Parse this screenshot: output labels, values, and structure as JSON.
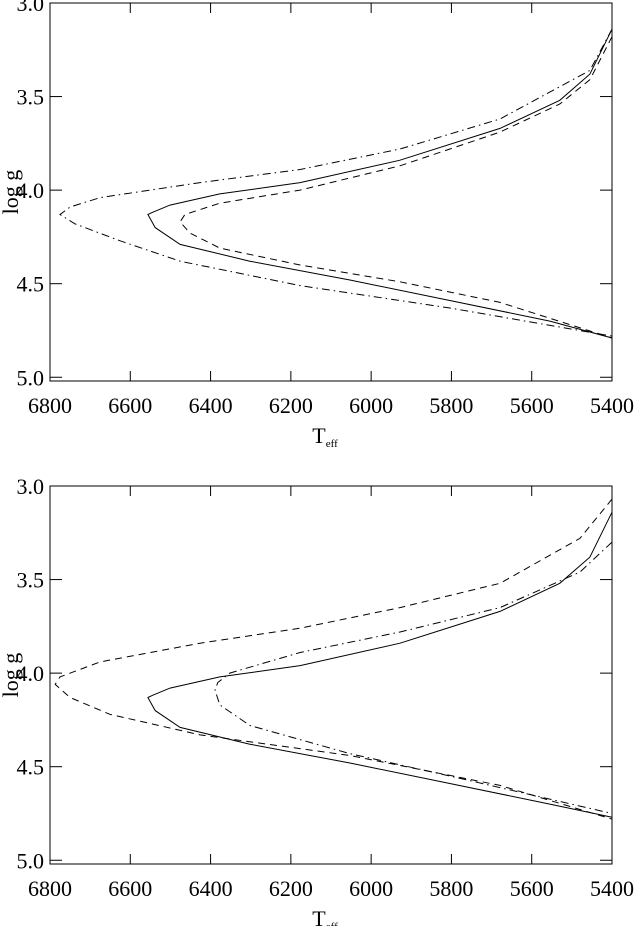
{
  "chart_data": [
    {
      "type": "line",
      "xlabel": {
        "text": "T",
        "subscript": "eff"
      },
      "ylabel": "log g",
      "xlim": [
        6800,
        5400
      ],
      "ylim": [
        5.02,
        3.0
      ],
      "xticks": [
        6800,
        6600,
        6400,
        6200,
        6000,
        5800,
        5600,
        5400
      ],
      "yticks": [
        {
          "value": 3,
          "label": "3.0"
        },
        3.5,
        {
          "value": 4,
          "label": "4.0"
        },
        4.5,
        {
          "value": 5,
          "label": "5.0"
        }
      ],
      "series": [
        {
          "style": "solid",
          "color": "#000000",
          "x": [
            5400,
            5455,
            5530,
            5679,
            5928,
            6177,
            6377,
            6501,
            6546,
            6556,
            6538,
            6476,
            6302,
            6053,
            5804,
            5555,
            5400
          ],
          "values": [
            3.14,
            3.38,
            3.52,
            3.67,
            3.84,
            3.96,
            4.02,
            4.08,
            4.12,
            4.13,
            4.2,
            4.29,
            4.38,
            4.48,
            4.59,
            4.7,
            4.79
          ]
        },
        {
          "style": "dashed",
          "color": "#000000",
          "x": [
            5400,
            5455,
            5530,
            5679,
            5928,
            6177,
            6377,
            6464,
            6476,
            6451,
            6377,
            6177,
            5928,
            5679,
            5400
          ],
          "values": [
            3.18,
            3.41,
            3.54,
            3.69,
            3.87,
            4.0,
            4.07,
            4.13,
            4.17,
            4.23,
            4.31,
            4.4,
            4.49,
            4.6,
            4.79
          ]
        },
        {
          "style": "dashdot",
          "color": "#000000",
          "x": [
            5400,
            5455,
            5679,
            5928,
            6177,
            6426,
            6675,
            6750,
            6775,
            6738,
            6626,
            6476,
            6177,
            5804,
            5400
          ],
          "values": [
            3.14,
            3.36,
            3.62,
            3.78,
            3.89,
            3.96,
            4.04,
            4.09,
            4.13,
            4.18,
            4.27,
            4.38,
            4.51,
            4.63,
            4.78
          ]
        }
      ]
    },
    {
      "type": "line",
      "xlabel": {
        "text": "T",
        "subscript": "eff"
      },
      "ylabel": "log g",
      "xlim": [
        6800,
        5400
      ],
      "ylim": [
        5.02,
        3.0
      ],
      "xticks": [
        6800,
        6600,
        6400,
        6200,
        6000,
        5800,
        5600,
        5400
      ],
      "yticks": [
        {
          "value": 3,
          "label": "3.0"
        },
        3.5,
        {
          "value": 4,
          "label": "4.0"
        },
        4.5,
        {
          "value": 5,
          "label": "5.0"
        }
      ],
      "series": [
        {
          "style": "solid",
          "color": "#000000",
          "x": [
            5400,
            5455,
            5530,
            5679,
            5928,
            6177,
            6377,
            6501,
            6546,
            6556,
            6538,
            6476,
            6302,
            6053,
            5804,
            5555,
            5400
          ],
          "values": [
            3.14,
            3.38,
            3.52,
            3.67,
            3.84,
            3.96,
            4.02,
            4.08,
            4.12,
            4.13,
            4.2,
            4.29,
            4.38,
            4.48,
            4.59,
            4.7,
            4.77
          ]
        },
        {
          "style": "dashed",
          "color": "#000000",
          "x": [
            5400,
            5480,
            5679,
            5928,
            6177,
            6426,
            6675,
            6775,
            6787,
            6750,
            6651,
            6426,
            6053,
            5679,
            5400
          ],
          "values": [
            3.07,
            3.28,
            3.52,
            3.65,
            3.76,
            3.84,
            3.94,
            4.02,
            4.06,
            4.13,
            4.22,
            4.33,
            4.44,
            4.6,
            4.78
          ]
        },
        {
          "style": "dashdot",
          "color": "#000000",
          "x": [
            5400,
            5480,
            5679,
            5928,
            6177,
            6352,
            6382,
            6389,
            6377,
            6302,
            6053,
            5804,
            5400
          ],
          "values": [
            3.3,
            3.46,
            3.65,
            3.78,
            3.89,
            4.0,
            4.05,
            4.09,
            4.17,
            4.28,
            4.43,
            4.55,
            4.75
          ]
        }
      ]
    }
  ]
}
